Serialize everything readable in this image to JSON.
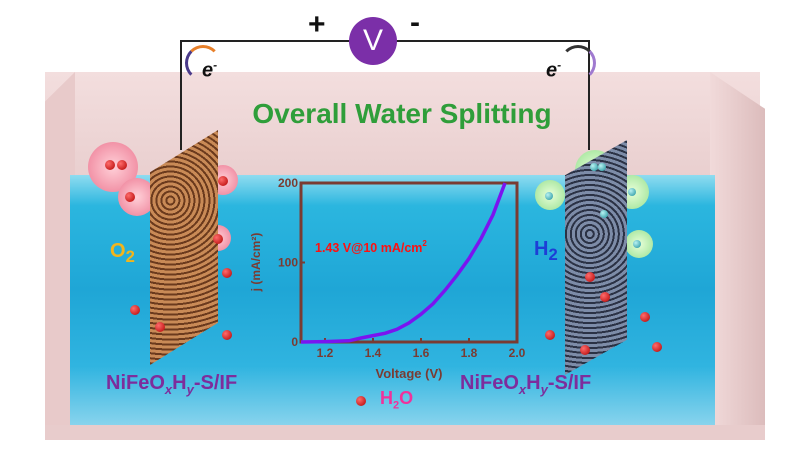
{
  "title": "Overall Water Splitting",
  "voltmeter": {
    "symbol": "V",
    "plus": "+",
    "minus": "-"
  },
  "electron_label": "e",
  "electron_sup": "-",
  "anode": {
    "gas": "O",
    "gas_sub": "2",
    "catalyst": [
      "NiFeO",
      "x",
      "H",
      "y",
      "-S/IF"
    ]
  },
  "cathode": {
    "gas": "H",
    "gas_sub": "2",
    "catalyst": [
      "NiFeO",
      "x",
      "H",
      "y",
      "-S/IF"
    ]
  },
  "water_label": {
    "main": "H",
    "sub": "2",
    "tail": "O"
  },
  "colors": {
    "title": "#2f9e3a",
    "curve": "#7a14f0",
    "axis": "#7a3b32",
    "annotation": "#ff1010",
    "catalyst": "#7d2d9c",
    "o2": "#f2b51c",
    "h2": "#1d3fd6"
  },
  "chart_data": {
    "type": "line",
    "xlabel": "Voltage (V)",
    "ylabel": "j (mA/cm²)",
    "xlim": [
      1.1,
      2.0
    ],
    "ylim": [
      0,
      200
    ],
    "xticks": [
      "1.2",
      "1.4",
      "1.6",
      "1.8",
      "2.0"
    ],
    "yticks": [
      "0",
      "100",
      "200"
    ],
    "annotation": "1.43 V@10 mA/cm",
    "annotation_sup": "2",
    "x": [
      1.1,
      1.2,
      1.3,
      1.35,
      1.4,
      1.45,
      1.5,
      1.55,
      1.6,
      1.65,
      1.7,
      1.75,
      1.8,
      1.85,
      1.9,
      1.95
    ],
    "y": [
      0,
      0.5,
      1.5,
      5,
      8,
      11,
      16,
      24,
      35,
      48,
      65,
      84,
      105,
      130,
      160,
      200
    ]
  }
}
